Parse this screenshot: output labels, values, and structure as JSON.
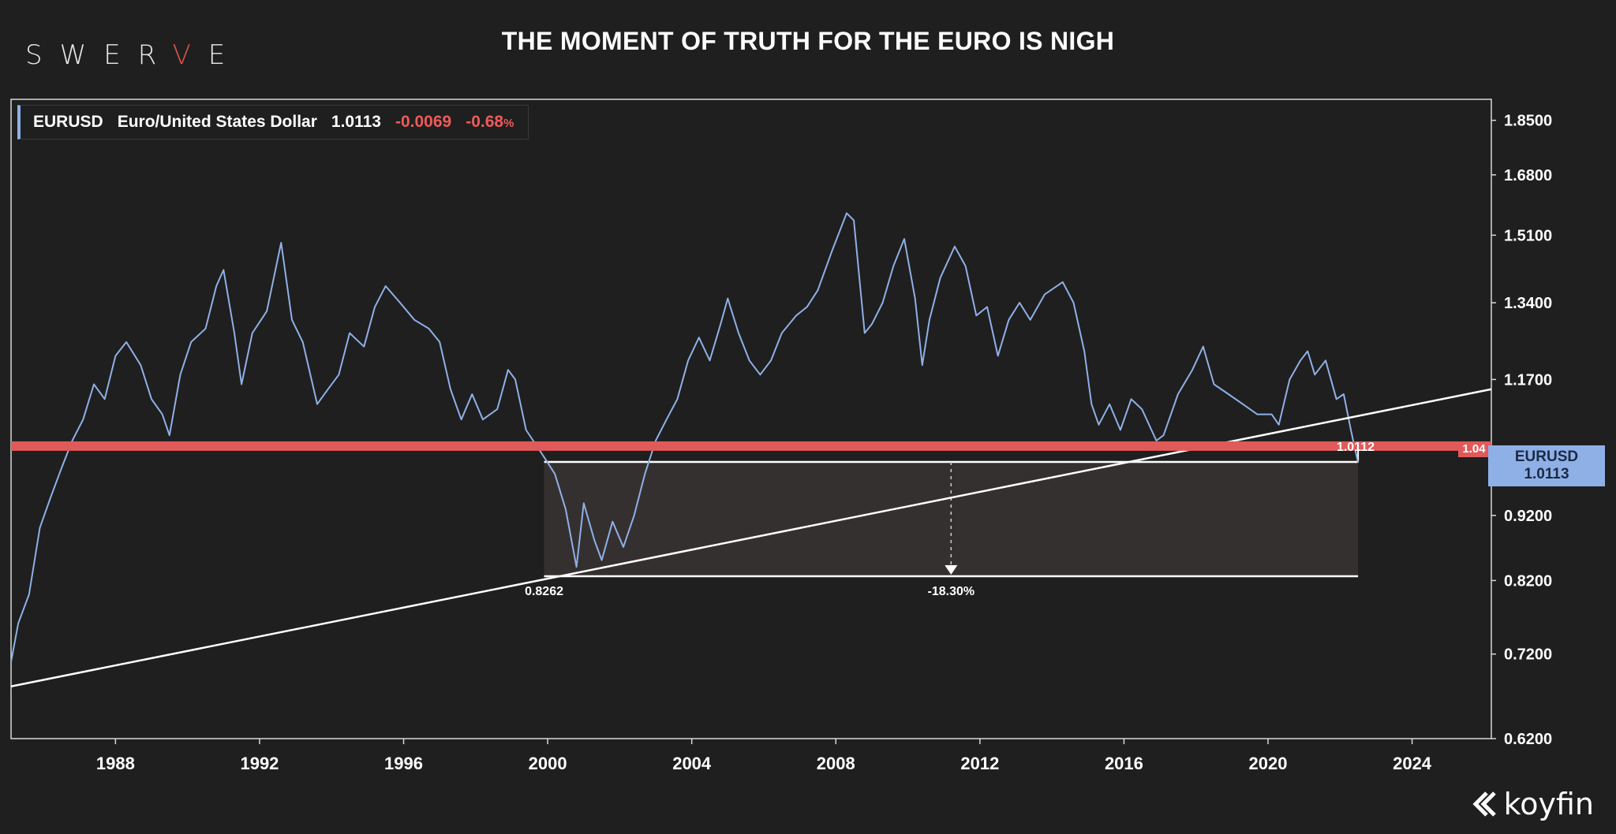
{
  "brand": {
    "prefix": "SWER",
    "accent": "V",
    "suffix": "E"
  },
  "title": "THE MOMENT OF TRUTH FOR THE EURO IS NIGH",
  "legend": {
    "ticker": "EURUSD",
    "name": "Euro/United States Dollar",
    "last": "1.0113",
    "change": "-0.0069",
    "change_pct": "-0.68",
    "pct_sign": "%"
  },
  "last_tag": {
    "ticker": "EURUSD",
    "value": "1.0113"
  },
  "level_tag": "1.04",
  "koyfin_label": "koyfin",
  "colors": {
    "series": "#8fb0e6",
    "level": "#e05a5a",
    "negative": "#ef5a5a",
    "background": "#1f1f1f"
  },
  "chart_data": {
    "type": "line",
    "y_scale": "log",
    "ylim": [
      0.62,
      1.92
    ],
    "xlim": [
      1985.1,
      2026.2
    ],
    "y_ticks": [
      "1.8500",
      "1.6800",
      "1.5100",
      "1.3400",
      "1.1700",
      "0.9200",
      "0.8200",
      "0.7200",
      "0.6200"
    ],
    "x_ticks": [
      "1988",
      "1992",
      "1996",
      "2000",
      "2004",
      "2008",
      "2012",
      "2016",
      "2020",
      "2024"
    ],
    "series": [
      {
        "values": [
          [
            1985.1,
            0.71
          ],
          [
            1985.3,
            0.76
          ],
          [
            1985.6,
            0.8
          ],
          [
            1985.9,
            0.9
          ],
          [
            1986.2,
            0.95
          ],
          [
            1986.5,
            1.0
          ],
          [
            1986.8,
            1.05
          ],
          [
            1987.1,
            1.09
          ],
          [
            1987.4,
            1.16
          ],
          [
            1987.7,
            1.13
          ],
          [
            1988.0,
            1.22
          ],
          [
            1988.3,
            1.25
          ],
          [
            1988.7,
            1.2
          ],
          [
            1989.0,
            1.13
          ],
          [
            1989.3,
            1.1
          ],
          [
            1989.5,
            1.06
          ],
          [
            1989.8,
            1.18
          ],
          [
            1990.1,
            1.25
          ],
          [
            1990.5,
            1.28
          ],
          [
            1990.8,
            1.38
          ],
          [
            1991.0,
            1.42
          ],
          [
            1991.3,
            1.27
          ],
          [
            1991.5,
            1.16
          ],
          [
            1991.8,
            1.27
          ],
          [
            1992.2,
            1.32
          ],
          [
            1992.6,
            1.49
          ],
          [
            1992.9,
            1.3
          ],
          [
            1993.2,
            1.25
          ],
          [
            1993.6,
            1.12
          ],
          [
            1993.9,
            1.15
          ],
          [
            1994.2,
            1.18
          ],
          [
            1994.5,
            1.27
          ],
          [
            1994.9,
            1.24
          ],
          [
            1995.2,
            1.33
          ],
          [
            1995.5,
            1.38
          ],
          [
            1995.9,
            1.34
          ],
          [
            1996.3,
            1.3
          ],
          [
            1996.7,
            1.28
          ],
          [
            1997.0,
            1.25
          ],
          [
            1997.3,
            1.15
          ],
          [
            1997.6,
            1.09
          ],
          [
            1997.9,
            1.14
          ],
          [
            1998.2,
            1.09
          ],
          [
            1998.6,
            1.11
          ],
          [
            1998.9,
            1.19
          ],
          [
            1999.1,
            1.17
          ],
          [
            1999.4,
            1.07
          ],
          [
            1999.7,
            1.04
          ],
          [
            1999.9,
            1.02
          ],
          [
            2000.2,
            0.99
          ],
          [
            2000.5,
            0.93
          ],
          [
            2000.8,
            0.84
          ],
          [
            2001.0,
            0.94
          ],
          [
            2001.3,
            0.88
          ],
          [
            2001.5,
            0.85
          ],
          [
            2001.8,
            0.91
          ],
          [
            2002.1,
            0.87
          ],
          [
            2002.4,
            0.92
          ],
          [
            2002.7,
            0.99
          ],
          [
            2003.0,
            1.05
          ],
          [
            2003.3,
            1.09
          ],
          [
            2003.6,
            1.13
          ],
          [
            2003.9,
            1.21
          ],
          [
            2004.2,
            1.26
          ],
          [
            2004.5,
            1.21
          ],
          [
            2004.8,
            1.29
          ],
          [
            2005.0,
            1.35
          ],
          [
            2005.3,
            1.27
          ],
          [
            2005.6,
            1.21
          ],
          [
            2005.9,
            1.18
          ],
          [
            2006.2,
            1.21
          ],
          [
            2006.5,
            1.27
          ],
          [
            2006.9,
            1.31
          ],
          [
            2007.2,
            1.33
          ],
          [
            2007.5,
            1.37
          ],
          [
            2007.9,
            1.47
          ],
          [
            2008.3,
            1.57
          ],
          [
            2008.5,
            1.55
          ],
          [
            2008.8,
            1.27
          ],
          [
            2009.0,
            1.29
          ],
          [
            2009.3,
            1.34
          ],
          [
            2009.6,
            1.43
          ],
          [
            2009.9,
            1.5
          ],
          [
            2010.2,
            1.35
          ],
          [
            2010.4,
            1.2
          ],
          [
            2010.6,
            1.3
          ],
          [
            2010.9,
            1.4
          ],
          [
            2011.3,
            1.48
          ],
          [
            2011.6,
            1.43
          ],
          [
            2011.9,
            1.31
          ],
          [
            2012.2,
            1.33
          ],
          [
            2012.5,
            1.22
          ],
          [
            2012.8,
            1.3
          ],
          [
            2013.1,
            1.34
          ],
          [
            2013.4,
            1.3
          ],
          [
            2013.8,
            1.36
          ],
          [
            2014.3,
            1.39
          ],
          [
            2014.6,
            1.34
          ],
          [
            2014.9,
            1.23
          ],
          [
            2015.1,
            1.12
          ],
          [
            2015.3,
            1.08
          ],
          [
            2015.6,
            1.12
          ],
          [
            2015.9,
            1.07
          ],
          [
            2016.2,
            1.13
          ],
          [
            2016.5,
            1.11
          ],
          [
            2016.9,
            1.05
          ],
          [
            2017.1,
            1.06
          ],
          [
            2017.5,
            1.14
          ],
          [
            2017.9,
            1.19
          ],
          [
            2018.2,
            1.24
          ],
          [
            2018.5,
            1.16
          ],
          [
            2018.9,
            1.14
          ],
          [
            2019.3,
            1.12
          ],
          [
            2019.7,
            1.1
          ],
          [
            2020.1,
            1.1
          ],
          [
            2020.3,
            1.08
          ],
          [
            2020.6,
            1.17
          ],
          [
            2020.9,
            1.21
          ],
          [
            2021.1,
            1.23
          ],
          [
            2021.3,
            1.18
          ],
          [
            2021.6,
            1.21
          ],
          [
            2021.9,
            1.13
          ],
          [
            2022.1,
            1.14
          ],
          [
            2022.3,
            1.07
          ],
          [
            2022.5,
            1.01
          ]
        ]
      }
    ],
    "annotations": {
      "horizontal_level": 1.04,
      "trendline": {
        "start": [
          1985.1,
          0.68
        ],
        "end": [
          2026.2,
          1.15
        ]
      },
      "drawdown_box": {
        "x_start": 1999.9,
        "x_end": 2022.5,
        "top": 1.0112,
        "bottom": 0.8262
      },
      "labels": {
        "top": "1.0112",
        "bottom": "0.8262",
        "change": "-18.30%"
      }
    }
  }
}
